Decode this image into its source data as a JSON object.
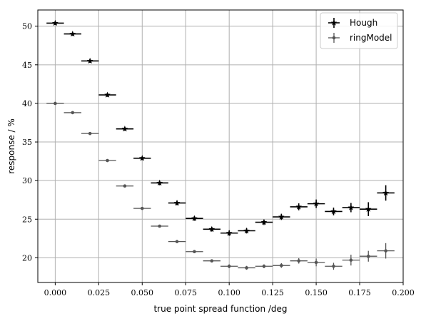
{
  "chart_data": {
    "type": "scatter",
    "xlabel": "true point spread function  /deg",
    "ylabel": "response  / %",
    "xlim": [
      -0.01,
      0.2
    ],
    "ylim": [
      16.8,
      52.1
    ],
    "xticks": [
      0.0,
      0.025,
      0.05,
      0.075,
      0.1,
      0.125,
      0.15,
      0.175,
      0.2
    ],
    "xtick_labels": [
      "0.000",
      "0.025",
      "0.050",
      "0.075",
      "0.100",
      "0.125",
      "0.150",
      "0.175",
      "0.200"
    ],
    "yticks": [
      20,
      25,
      30,
      35,
      40,
      45,
      50
    ],
    "ytick_labels": [
      "20",
      "25",
      "30",
      "35",
      "40",
      "45",
      "50"
    ],
    "grid": true,
    "legend_position": "top-right",
    "x_error": 0.005,
    "series": [
      {
        "name": "Hough",
        "marker": "star",
        "color": "#000000",
        "x": [
          0.0,
          0.01,
          0.02,
          0.03,
          0.04,
          0.05,
          0.06,
          0.07,
          0.08,
          0.09,
          0.1,
          0.11,
          0.12,
          0.13,
          0.14,
          0.15,
          0.16,
          0.17,
          0.18,
          0.19
        ],
        "y": [
          50.4,
          49.0,
          45.5,
          41.1,
          36.7,
          32.9,
          29.7,
          27.1,
          25.1,
          23.7,
          23.2,
          23.5,
          24.6,
          25.3,
          26.6,
          27.0,
          26.0,
          26.5,
          26.3,
          28.4
        ],
        "yerr": [
          0.25,
          0.25,
          0.25,
          0.25,
          0.25,
          0.25,
          0.3,
          0.3,
          0.3,
          0.3,
          0.35,
          0.35,
          0.35,
          0.4,
          0.45,
          0.55,
          0.5,
          0.6,
          0.9,
          1.0
        ]
      },
      {
        "name": "ringModel",
        "marker": "circle",
        "color": "#555555",
        "x": [
          0.0,
          0.01,
          0.02,
          0.03,
          0.04,
          0.05,
          0.06,
          0.07,
          0.08,
          0.09,
          0.1,
          0.11,
          0.12,
          0.13,
          0.14,
          0.15,
          0.16,
          0.17,
          0.18,
          0.19
        ],
        "y": [
          40.0,
          38.8,
          36.1,
          32.6,
          29.3,
          26.4,
          24.1,
          22.1,
          20.8,
          19.6,
          18.9,
          18.7,
          18.9,
          19.0,
          19.6,
          19.4,
          18.9,
          19.7,
          20.2,
          20.9
        ],
        "yerr": [
          0.15,
          0.15,
          0.15,
          0.15,
          0.15,
          0.15,
          0.15,
          0.15,
          0.15,
          0.2,
          0.25,
          0.25,
          0.25,
          0.3,
          0.35,
          0.5,
          0.45,
          0.7,
          0.7,
          1.0
        ]
      }
    ]
  }
}
